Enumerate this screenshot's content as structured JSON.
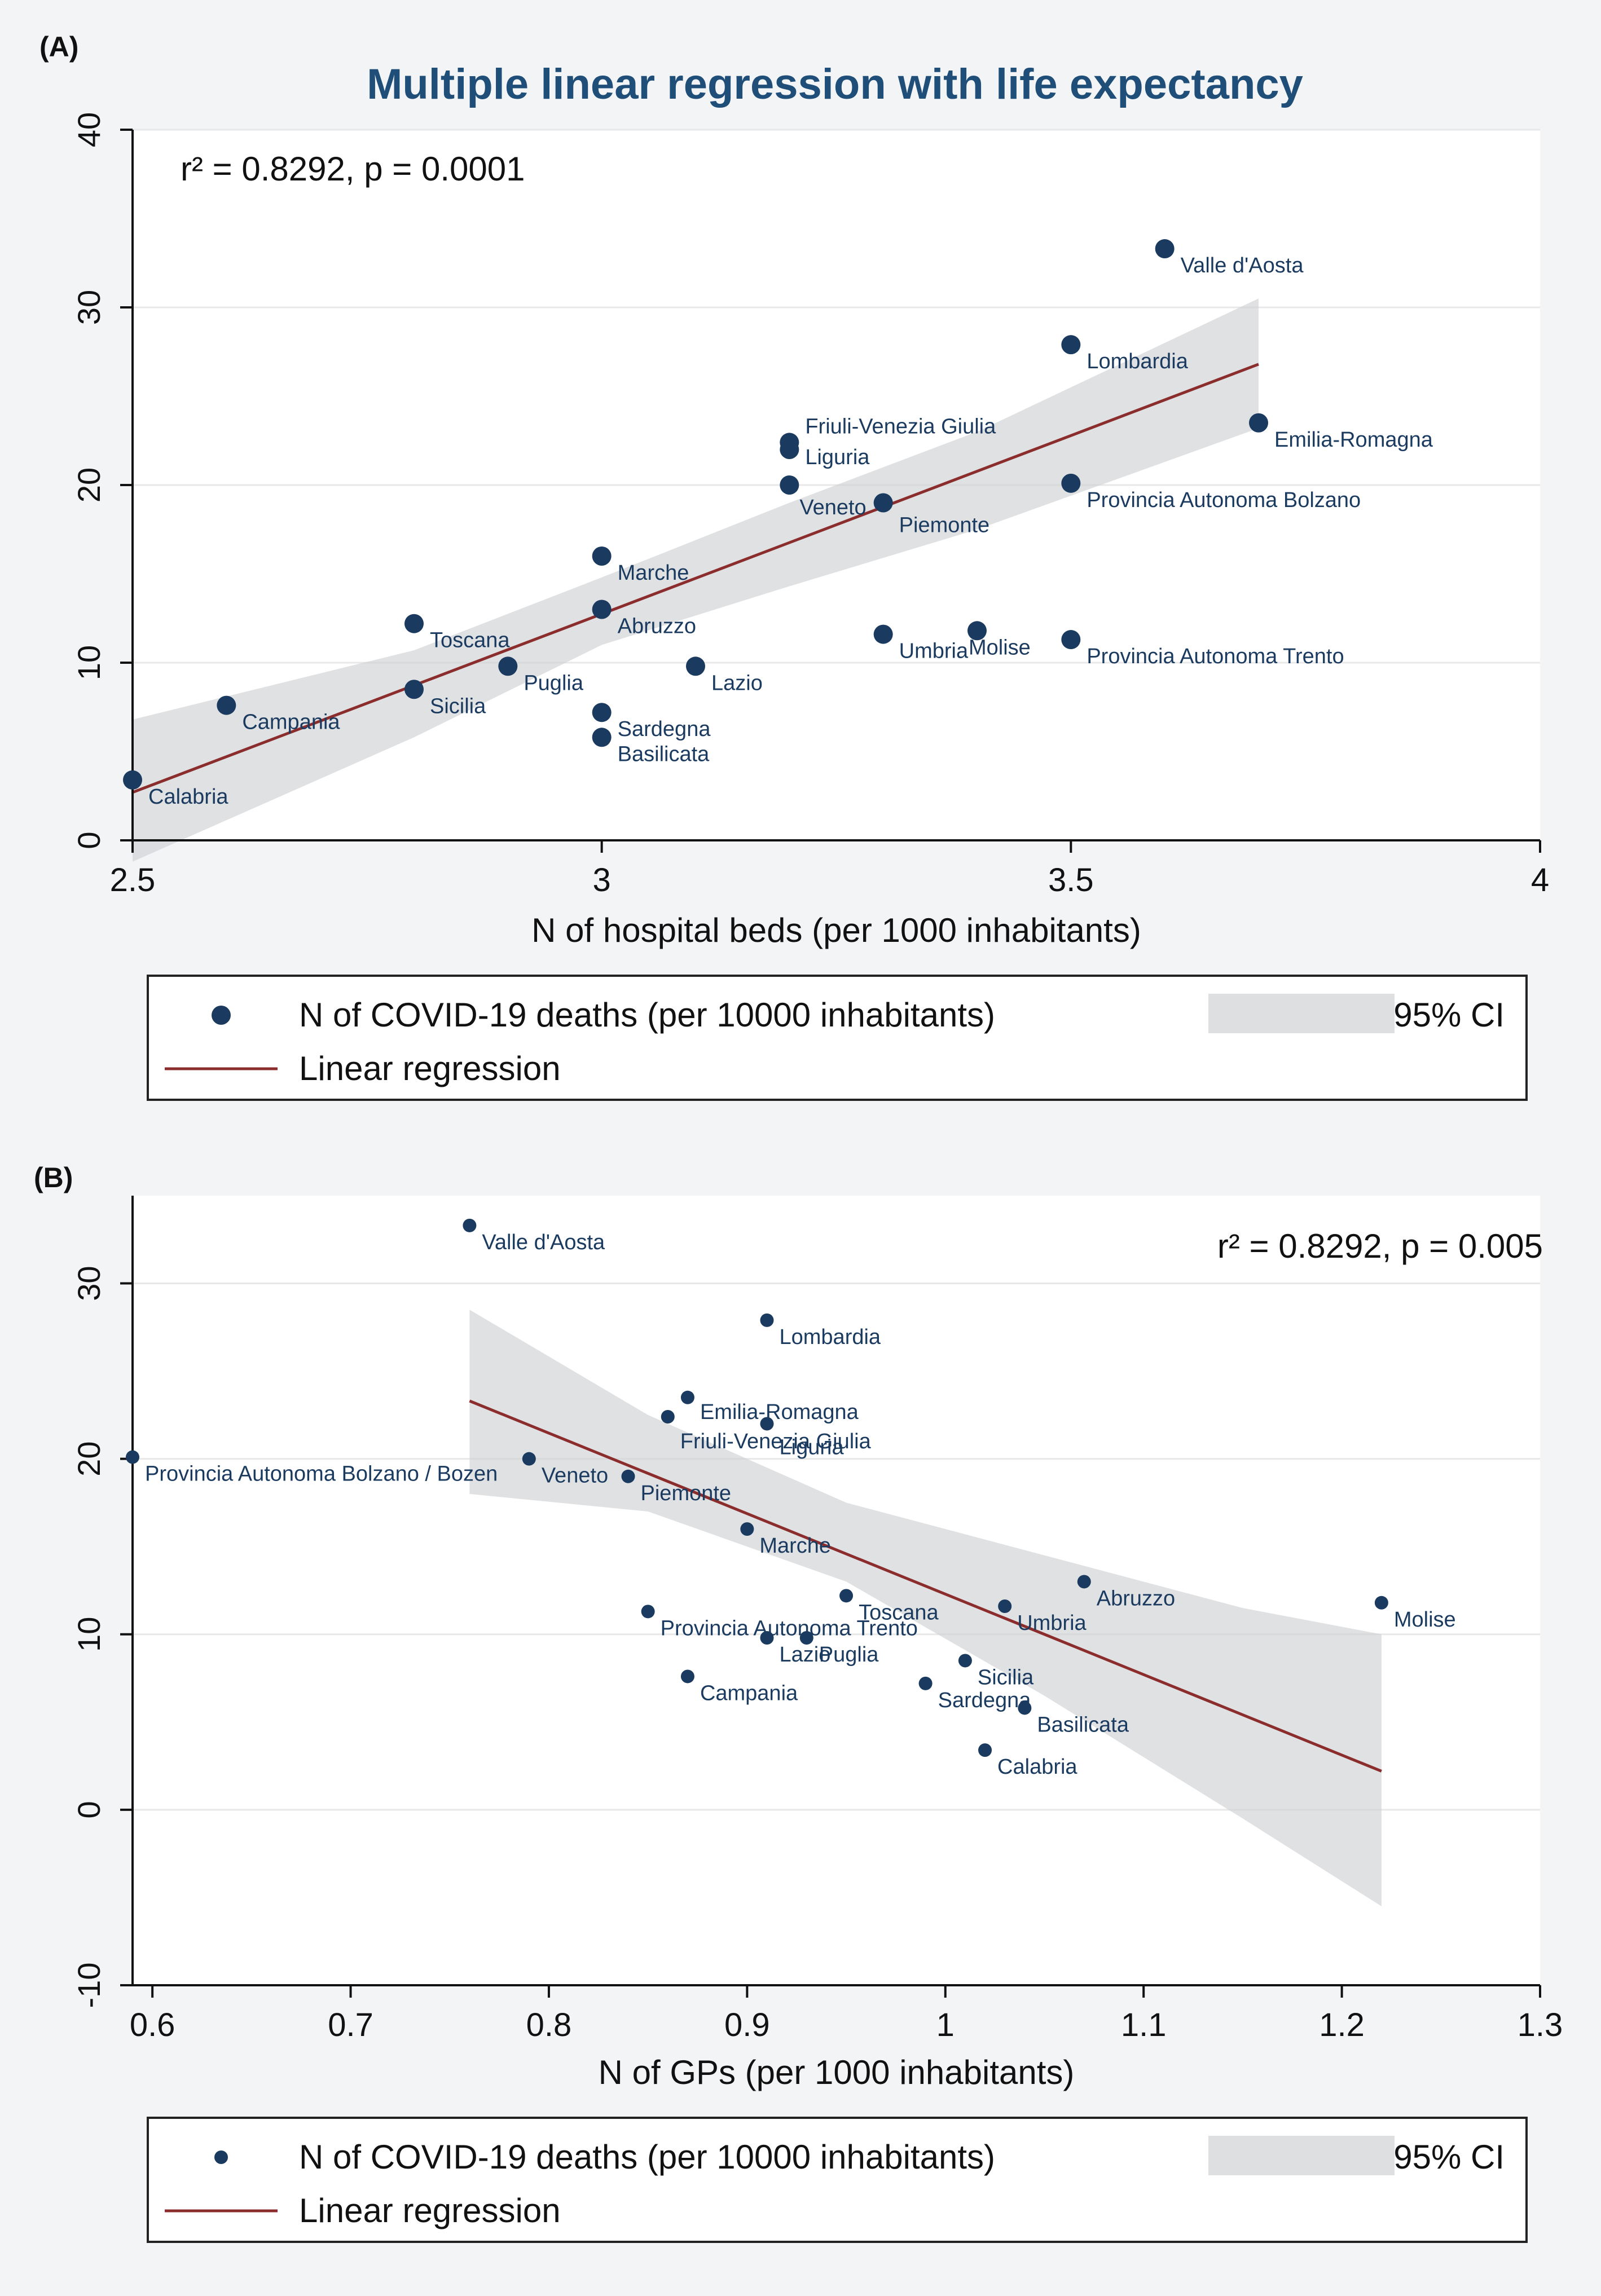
{
  "colors": {
    "page_bg": "#f3f4f6",
    "plot_bg": "#ffffff",
    "point": "#1a3a5f",
    "point_label": "#1a3a5f",
    "regression_line": "#8b2d2d",
    "ci_fill": "#cfd1d4",
    "grid": "#e8e8e8",
    "axis": "#111111",
    "title": "#1f4e79"
  },
  "chart_data": [
    {
      "panel_label": "(A)",
      "type": "scatter",
      "title": "Multiple linear regression with life expectancy",
      "xlabel": "N of hospital beds (per 1000 inhabitants)",
      "ylabel": "",
      "xlim": [
        2.5,
        4.0
      ],
      "ylim": [
        0,
        40
      ],
      "xticks": [
        2.5,
        3,
        3.5,
        4
      ],
      "xtick_labels": [
        "2.5",
        "3",
        "3.5",
        "4"
      ],
      "yticks": [
        0,
        10,
        20,
        30,
        40
      ],
      "ytick_labels": [
        "0",
        "10",
        "20",
        "30",
        "40"
      ],
      "grid": true,
      "annotation": "r² = 0.8292, p =  0.0001",
      "annotation_position": "top-left",
      "points": [
        {
          "label": "Valle d'Aosta",
          "x": 3.6,
          "y": 33.3
        },
        {
          "label": "Lombardia",
          "x": 3.5,
          "y": 27.9
        },
        {
          "label": "Emilia-Romagna",
          "x": 3.7,
          "y": 23.5
        },
        {
          "label": "Friuli-Venezia Giulia",
          "x": 3.2,
          "y": 22.4
        },
        {
          "label": "Liguria",
          "x": 3.2,
          "y": 22.0
        },
        {
          "label": "Veneto",
          "x": 3.2,
          "y": 20.0
        },
        {
          "label": "Piemonte",
          "x": 3.3,
          "y": 19.0
        },
        {
          "label": "Provincia Autonoma Bolzano",
          "x": 3.5,
          "y": 20.1
        },
        {
          "label": "Marche",
          "x": 3.0,
          "y": 16.0
        },
        {
          "label": "Abruzzo",
          "x": 3.0,
          "y": 13.0
        },
        {
          "label": "Toscana",
          "x": 2.8,
          "y": 12.2
        },
        {
          "label": "Umbria",
          "x": 3.3,
          "y": 11.6
        },
        {
          "label": "Molise",
          "x": 3.4,
          "y": 11.8
        },
        {
          "label": "Provincia Autonoma Trento",
          "x": 3.5,
          "y": 11.3
        },
        {
          "label": "Lazio",
          "x": 3.1,
          "y": 9.8
        },
        {
          "label": "Puglia",
          "x": 2.9,
          "y": 9.8
        },
        {
          "label": "Sicilia",
          "x": 2.8,
          "y": 8.5
        },
        {
          "label": "Campania",
          "x": 2.6,
          "y": 7.6
        },
        {
          "label": "Sardegna",
          "x": 3.0,
          "y": 7.2
        },
        {
          "label": "Basilicata",
          "x": 3.0,
          "y": 5.8
        },
        {
          "label": "Calabria",
          "x": 2.5,
          "y": 3.4
        }
      ],
      "regression": {
        "x": [
          2.5,
          3.7
        ],
        "y": [
          2.7,
          26.8
        ]
      },
      "ci": {
        "x": [
          2.5,
          2.8,
          3.0,
          3.2,
          3.4,
          3.7
        ],
        "upper": [
          6.8,
          10.7,
          14.8,
          19.0,
          23.0,
          30.5
        ],
        "lower": [
          -1.2,
          5.8,
          11.0,
          14.3,
          17.5,
          23.2
        ]
      },
      "legend": {
        "points_label": "N of COVID-19 deaths (per 10000 inhabitants)",
        "ci_label": "95% CI",
        "line_label": "Linear regression"
      }
    },
    {
      "panel_label": "(B)",
      "type": "scatter",
      "title": "",
      "xlabel": "N of GPs (per 1000 inhabitants)",
      "ylabel": "",
      "xlim": [
        0.59,
        1.3
      ],
      "ylim": [
        -10,
        35
      ],
      "xticks": [
        0.6,
        0.7,
        0.8,
        0.9,
        1.0,
        1.1,
        1.2,
        1.3
      ],
      "xtick_labels": [
        "0.6",
        "0.7",
        "0.8",
        "0.9",
        "1",
        "1.1",
        "1.2",
        "1.3"
      ],
      "yticks": [
        -10,
        0,
        10,
        20,
        30
      ],
      "ytick_labels": [
        "-10",
        "0",
        "10",
        "20",
        "30"
      ],
      "grid": true,
      "annotation": "r² = 0.8292, p = 0.005",
      "annotation_position": "top-right",
      "points": [
        {
          "label": "Valle d'Aosta",
          "x": 0.76,
          "y": 33.3
        },
        {
          "label": "Lombardia",
          "x": 0.91,
          "y": 27.9
        },
        {
          "label": "Emilia-Romagna",
          "x": 0.87,
          "y": 23.5
        },
        {
          "label": "Friuli-Venezia Giulia",
          "x": 0.86,
          "y": 22.4
        },
        {
          "label": "Liguria",
          "x": 0.91,
          "y": 22.0
        },
        {
          "label": "Provincia Autonoma Bolzano / Bozen",
          "x": 0.59,
          "y": 20.1
        },
        {
          "label": "Veneto",
          "x": 0.79,
          "y": 20.0
        },
        {
          "label": "Piemonte",
          "x": 0.84,
          "y": 19.0
        },
        {
          "label": "Marche",
          "x": 0.9,
          "y": 16.0
        },
        {
          "label": "Toscana",
          "x": 0.95,
          "y": 12.2
        },
        {
          "label": "Abruzzo",
          "x": 1.07,
          "y": 13.0
        },
        {
          "label": "Umbria",
          "x": 1.03,
          "y": 11.6
        },
        {
          "label": "Molise",
          "x": 1.22,
          "y": 11.8
        },
        {
          "label": "Provincia Autonoma Trento",
          "x": 0.85,
          "y": 11.3
        },
        {
          "label": "Lazio",
          "x": 0.91,
          "y": 9.8
        },
        {
          "label": "Puglia",
          "x": 0.93,
          "y": 9.8
        },
        {
          "label": "Sicilia",
          "x": 1.01,
          "y": 8.5
        },
        {
          "label": "Campania",
          "x": 0.87,
          "y": 7.6
        },
        {
          "label": "Sardegna",
          "x": 0.99,
          "y": 7.2
        },
        {
          "label": "Basilicata",
          "x": 1.04,
          "y": 5.8
        },
        {
          "label": "Calabria",
          "x": 1.02,
          "y": 3.4
        }
      ],
      "regression": {
        "x": [
          0.76,
          1.22
        ],
        "y": [
          23.3,
          2.2
        ]
      },
      "ci": {
        "x": [
          0.76,
          0.85,
          0.95,
          1.05,
          1.15,
          1.22
        ],
        "upper": [
          28.5,
          22.5,
          17.5,
          14.5,
          11.5,
          10.0
        ],
        "lower": [
          18.0,
          17.0,
          13.0,
          6.5,
          -0.5,
          -5.5
        ]
      },
      "legend": {
        "points_label": "N of COVID-19 deaths (per 10000 inhabitants)",
        "ci_label": "95% CI",
        "line_label": "Linear regression"
      }
    }
  ]
}
